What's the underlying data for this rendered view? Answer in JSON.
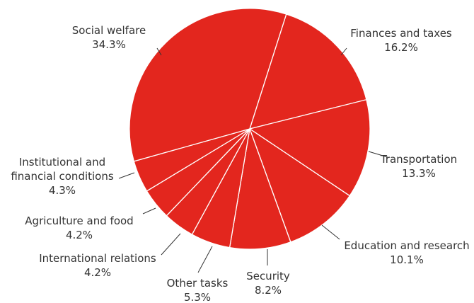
{
  "chart_data": {
    "type": "pie",
    "title": "",
    "colors": {
      "slice": "#e3261e",
      "separator": "#ffffff",
      "text": "#333333"
    },
    "slices": [
      {
        "label_lines": [
          "Finances and taxes"
        ],
        "value": 16.2,
        "value_label": "16.2%"
      },
      {
        "label_lines": [
          "Transportation"
        ],
        "value": 13.3,
        "value_label": "13.3%"
      },
      {
        "label_lines": [
          "Education and research"
        ],
        "value": 10.1,
        "value_label": "10.1%"
      },
      {
        "label_lines": [
          "Security"
        ],
        "value": 8.2,
        "value_label": "8.2%"
      },
      {
        "label_lines": [
          "Other tasks"
        ],
        "value": 5.3,
        "value_label": "5.3%"
      },
      {
        "label_lines": [
          "International relations"
        ],
        "value": 4.2,
        "value_label": "4.2%"
      },
      {
        "label_lines": [
          "Agriculture and food"
        ],
        "value": 4.2,
        "value_label": "4.2%"
      },
      {
        "label_lines": [
          "Institutional and",
          "financial conditions"
        ],
        "value": 4.3,
        "value_label": "4.3%"
      },
      {
        "label_lines": [
          "Social welfare"
        ],
        "value": 34.3,
        "value_label": "34.3%"
      }
    ]
  }
}
